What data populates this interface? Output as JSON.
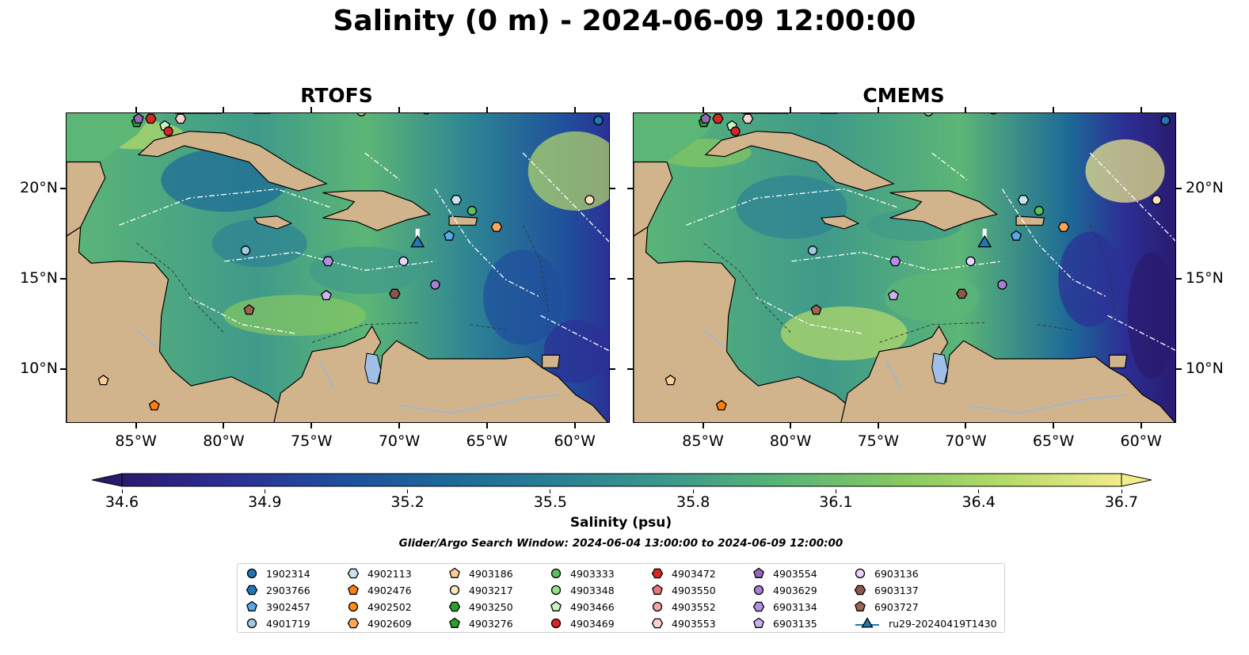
{
  "title": "Salinity (0 m) - 2024-06-09 12:00:00",
  "panels": [
    {
      "title": "RTOFS",
      "variant": "rtofs"
    },
    {
      "title": "CMEMS",
      "variant": "cmems"
    }
  ],
  "map_extent": {
    "lon_min": -89,
    "lon_max": -58,
    "lat_min": 7,
    "lat_max": 24.2
  },
  "lon_ticks": [
    {
      "value": -85,
      "label": "85°W"
    },
    {
      "value": -80,
      "label": "80°W"
    },
    {
      "value": -75,
      "label": "75°W"
    },
    {
      "value": -70,
      "label": "70°W"
    },
    {
      "value": -65,
      "label": "65°W"
    },
    {
      "value": -60,
      "label": "60°W"
    }
  ],
  "lat_ticks": [
    {
      "value": 20,
      "label": "20°N"
    },
    {
      "value": 15,
      "label": "15°N"
    },
    {
      "value": 10,
      "label": "10°N"
    }
  ],
  "colorbar": {
    "label": "Salinity (psu)",
    "min": 34.6,
    "max": 36.7,
    "tick_values": [
      34.6,
      34.9,
      35.2,
      35.5,
      35.8,
      36.1,
      36.4,
      36.7
    ],
    "tick_labels": [
      "34.6",
      "34.9",
      "35.2",
      "35.5",
      "35.8",
      "36.1",
      "36.4",
      "36.7"
    ],
    "colors": [
      "#2a1a6e",
      "#2c2f95",
      "#1f4f9c",
      "#1d6a97",
      "#2c8294",
      "#3f9a8a",
      "#5cb676",
      "#86c862",
      "#b8db6a",
      "#f3ec8a"
    ]
  },
  "search_window": "Glider/Argo Search Window: 2024-06-04 13:00:00 to 2024-06-09 12:00:00",
  "colors": {
    "land": "#d2b48c",
    "lake": "#9fbfe6",
    "river": "#a3b5c9"
  },
  "floats": [
    {
      "id": "1902314",
      "marker": "circle",
      "color": "#1f77b4",
      "lon": -58.7,
      "lat": 23.8
    },
    {
      "id": "2903766",
      "marker": "hexagon",
      "color": "#1f77b4",
      "lon": -69.0,
      "lat": 25.0
    },
    {
      "id": "3902457",
      "marker": "pentagon",
      "color": "#5aa9e6",
      "lon": -67.2,
      "lat": 17.4
    },
    {
      "id": "4901719",
      "marker": "circle",
      "color": "#9ecae1",
      "lon": -78.8,
      "lat": 16.6
    },
    {
      "id": "4902113",
      "marker": "hexagon",
      "color": "#c6e2f5",
      "lon": -66.8,
      "lat": 19.4
    },
    {
      "id": "4902476",
      "marker": "pentagon",
      "color": "#ff7f0e",
      "lon": -84.0,
      "lat": 8.0
    },
    {
      "id": "4902502",
      "marker": "circle",
      "color": "#ff8c1a",
      "lon": -60.0,
      "lat": 25.0
    },
    {
      "id": "4902609",
      "marker": "hexagon",
      "color": "#ffa55c",
      "lon": -64.5,
      "lat": 17.9
    },
    {
      "id": "4903186",
      "marker": "pentagon",
      "color": "#ffcc99",
      "lon": -86.9,
      "lat": 9.4
    },
    {
      "id": "4903217",
      "marker": "circle",
      "color": "#ffe3c4",
      "lon": -59.2,
      "lat": 19.4
    },
    {
      "id": "4903250",
      "marker": "hexagon",
      "color": "#2ca02c",
      "lon": -75.0,
      "lat": 25.0
    },
    {
      "id": "4903276",
      "marker": "pentagon",
      "color": "#2ca02c",
      "lon": -85.0,
      "lat": 23.7
    },
    {
      "id": "4903333",
      "marker": "circle",
      "color": "#5cc05c",
      "lon": -65.9,
      "lat": 18.8
    },
    {
      "id": "4903348",
      "marker": "circle",
      "color": "#98df8a",
      "lon": -72.2,
      "lat": 24.3
    },
    {
      "id": "4903466",
      "marker": "pentagon",
      "color": "#c9f2c0",
      "lon": -83.4,
      "lat": 23.5
    },
    {
      "id": "4903469",
      "marker": "circle",
      "color": "#d62728",
      "lon": -83.2,
      "lat": 23.2
    },
    {
      "id": "4903472",
      "marker": "hexagon",
      "color": "#d62728",
      "lon": -84.2,
      "lat": 23.9
    },
    {
      "id": "4903550",
      "marker": "pentagon",
      "color": "#e8777a",
      "lon": -62.0,
      "lat": 25.0
    },
    {
      "id": "4903552",
      "marker": "circle",
      "color": "#f4a7a3",
      "lon": -68.5,
      "lat": 24.4
    },
    {
      "id": "4903553",
      "marker": "hexagon",
      "color": "#fbd2cf",
      "lon": -82.5,
      "lat": 23.9
    },
    {
      "id": "4903554",
      "marker": "pentagon",
      "color": "#9467bd",
      "lon": -84.9,
      "lat": 23.9
    },
    {
      "id": "4903629",
      "marker": "circle",
      "color": "#a97fd6",
      "lon": -68.0,
      "lat": 14.7
    },
    {
      "id": "6903134",
      "marker": "hexagon",
      "color": "#b48ee6",
      "lon": -74.1,
      "lat": 16.0
    },
    {
      "id": "6903135",
      "marker": "pentagon",
      "color": "#cdb2f0",
      "lon": -74.2,
      "lat": 14.1
    },
    {
      "id": "6903136",
      "marker": "circle",
      "color": "#e8d3fb",
      "lon": -69.8,
      "lat": 16.0
    },
    {
      "id": "6903137",
      "marker": "hexagon",
      "color": "#8c564b",
      "lon": -70.3,
      "lat": 14.2
    },
    {
      "id": "6903727",
      "marker": "pentagon",
      "color": "#a0634f",
      "lon": -78.6,
      "lat": 13.3
    }
  ],
  "glider": {
    "id": "ru29-20240419T1430",
    "marker": "triangle",
    "color": "#1f77b4",
    "lon": -69.0,
    "lat": 17.0
  }
}
